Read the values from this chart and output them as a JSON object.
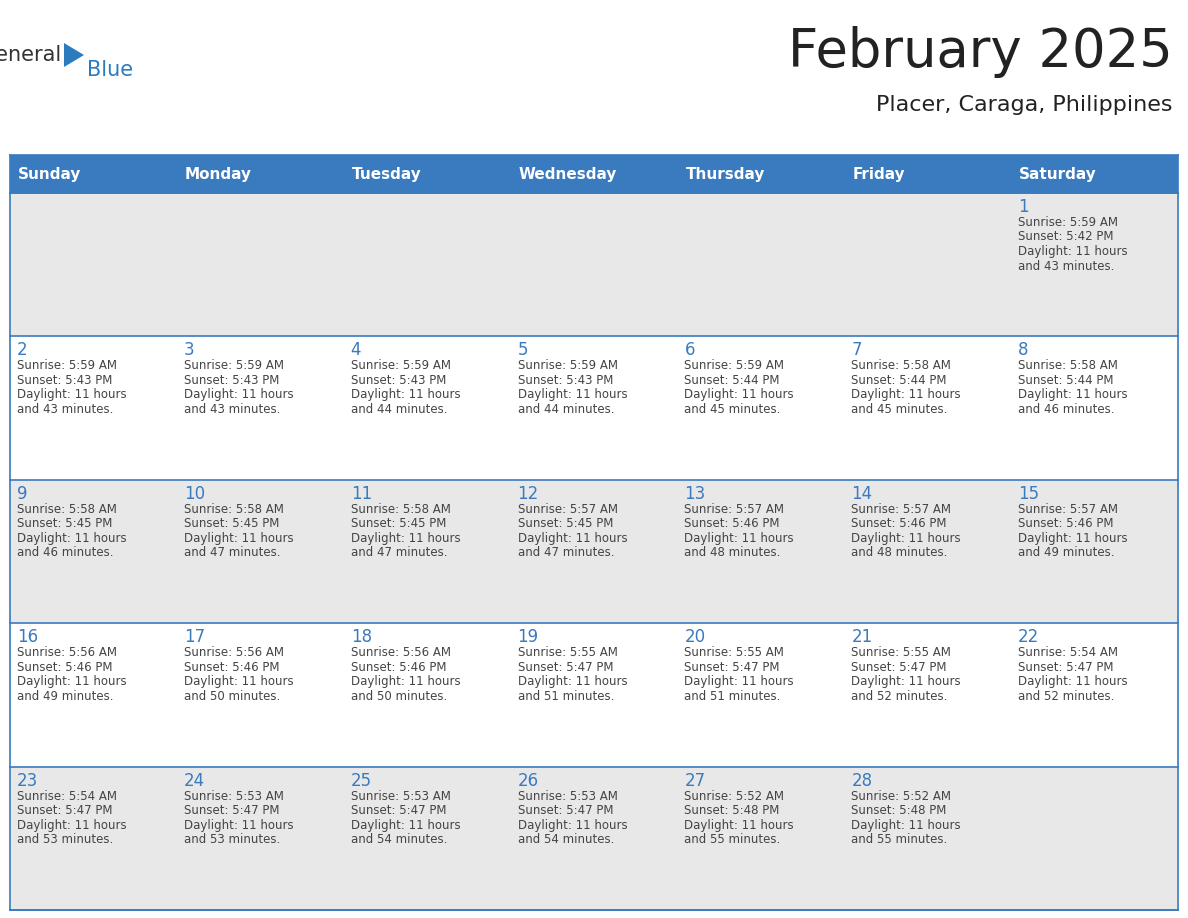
{
  "title": "February 2025",
  "subtitle": "Placer, Caraga, Philippines",
  "header_bg": "#3a7abf",
  "header_text": "#ffffff",
  "cell_bg_light": "#e8e8e8",
  "cell_bg_white": "#ffffff",
  "border_color": "#3a7abf",
  "day_number_color": "#3a7abf",
  "text_color": "#444444",
  "title_color": "#222222",
  "days_of_week": [
    "Sunday",
    "Monday",
    "Tuesday",
    "Wednesday",
    "Thursday",
    "Friday",
    "Saturday"
  ],
  "logo_general_color": "#333333",
  "logo_blue_color": "#2b7bbf",
  "calendar": [
    [
      {
        "day": "",
        "sunrise": "",
        "sunset": "",
        "daylight_h": "",
        "daylight_m": ""
      },
      {
        "day": "",
        "sunrise": "",
        "sunset": "",
        "daylight_h": "",
        "daylight_m": ""
      },
      {
        "day": "",
        "sunrise": "",
        "sunset": "",
        "daylight_h": "",
        "daylight_m": ""
      },
      {
        "day": "",
        "sunrise": "",
        "sunset": "",
        "daylight_h": "",
        "daylight_m": ""
      },
      {
        "day": "",
        "sunrise": "",
        "sunset": "",
        "daylight_h": "",
        "daylight_m": ""
      },
      {
        "day": "",
        "sunrise": "",
        "sunset": "",
        "daylight_h": "",
        "daylight_m": ""
      },
      {
        "day": "1",
        "sunrise": "5:59 AM",
        "sunset": "5:42 PM",
        "daylight_h": "11 hours",
        "daylight_m": "and 43 minutes."
      }
    ],
    [
      {
        "day": "2",
        "sunrise": "5:59 AM",
        "sunset": "5:43 PM",
        "daylight_h": "11 hours",
        "daylight_m": "and 43 minutes."
      },
      {
        "day": "3",
        "sunrise": "5:59 AM",
        "sunset": "5:43 PM",
        "daylight_h": "11 hours",
        "daylight_m": "and 43 minutes."
      },
      {
        "day": "4",
        "sunrise": "5:59 AM",
        "sunset": "5:43 PM",
        "daylight_h": "11 hours",
        "daylight_m": "and 44 minutes."
      },
      {
        "day": "5",
        "sunrise": "5:59 AM",
        "sunset": "5:43 PM",
        "daylight_h": "11 hours",
        "daylight_m": "and 44 minutes."
      },
      {
        "day": "6",
        "sunrise": "5:59 AM",
        "sunset": "5:44 PM",
        "daylight_h": "11 hours",
        "daylight_m": "and 45 minutes."
      },
      {
        "day": "7",
        "sunrise": "5:58 AM",
        "sunset": "5:44 PM",
        "daylight_h": "11 hours",
        "daylight_m": "and 45 minutes."
      },
      {
        "day": "8",
        "sunrise": "5:58 AM",
        "sunset": "5:44 PM",
        "daylight_h": "11 hours",
        "daylight_m": "and 46 minutes."
      }
    ],
    [
      {
        "day": "9",
        "sunrise": "5:58 AM",
        "sunset": "5:45 PM",
        "daylight_h": "11 hours",
        "daylight_m": "and 46 minutes."
      },
      {
        "day": "10",
        "sunrise": "5:58 AM",
        "sunset": "5:45 PM",
        "daylight_h": "11 hours",
        "daylight_m": "and 47 minutes."
      },
      {
        "day": "11",
        "sunrise": "5:58 AM",
        "sunset": "5:45 PM",
        "daylight_h": "11 hours",
        "daylight_m": "and 47 minutes."
      },
      {
        "day": "12",
        "sunrise": "5:57 AM",
        "sunset": "5:45 PM",
        "daylight_h": "11 hours",
        "daylight_m": "and 47 minutes."
      },
      {
        "day": "13",
        "sunrise": "5:57 AM",
        "sunset": "5:46 PM",
        "daylight_h": "11 hours",
        "daylight_m": "and 48 minutes."
      },
      {
        "day": "14",
        "sunrise": "5:57 AM",
        "sunset": "5:46 PM",
        "daylight_h": "11 hours",
        "daylight_m": "and 48 minutes."
      },
      {
        "day": "15",
        "sunrise": "5:57 AM",
        "sunset": "5:46 PM",
        "daylight_h": "11 hours",
        "daylight_m": "and 49 minutes."
      }
    ],
    [
      {
        "day": "16",
        "sunrise": "5:56 AM",
        "sunset": "5:46 PM",
        "daylight_h": "11 hours",
        "daylight_m": "and 49 minutes."
      },
      {
        "day": "17",
        "sunrise": "5:56 AM",
        "sunset": "5:46 PM",
        "daylight_h": "11 hours",
        "daylight_m": "and 50 minutes."
      },
      {
        "day": "18",
        "sunrise": "5:56 AM",
        "sunset": "5:46 PM",
        "daylight_h": "11 hours",
        "daylight_m": "and 50 minutes."
      },
      {
        "day": "19",
        "sunrise": "5:55 AM",
        "sunset": "5:47 PM",
        "daylight_h": "11 hours",
        "daylight_m": "and 51 minutes."
      },
      {
        "day": "20",
        "sunrise": "5:55 AM",
        "sunset": "5:47 PM",
        "daylight_h": "11 hours",
        "daylight_m": "and 51 minutes."
      },
      {
        "day": "21",
        "sunrise": "5:55 AM",
        "sunset": "5:47 PM",
        "daylight_h": "11 hours",
        "daylight_m": "and 52 minutes."
      },
      {
        "day": "22",
        "sunrise": "5:54 AM",
        "sunset": "5:47 PM",
        "daylight_h": "11 hours",
        "daylight_m": "and 52 minutes."
      }
    ],
    [
      {
        "day": "23",
        "sunrise": "5:54 AM",
        "sunset": "5:47 PM",
        "daylight_h": "11 hours",
        "daylight_m": "and 53 minutes."
      },
      {
        "day": "24",
        "sunrise": "5:53 AM",
        "sunset": "5:47 PM",
        "daylight_h": "11 hours",
        "daylight_m": "and 53 minutes."
      },
      {
        "day": "25",
        "sunrise": "5:53 AM",
        "sunset": "5:47 PM",
        "daylight_h": "11 hours",
        "daylight_m": "and 54 minutes."
      },
      {
        "day": "26",
        "sunrise": "5:53 AM",
        "sunset": "5:47 PM",
        "daylight_h": "11 hours",
        "daylight_m": "and 54 minutes."
      },
      {
        "day": "27",
        "sunrise": "5:52 AM",
        "sunset": "5:48 PM",
        "daylight_h": "11 hours",
        "daylight_m": "and 55 minutes."
      },
      {
        "day": "28",
        "sunrise": "5:52 AM",
        "sunset": "5:48 PM",
        "daylight_h": "11 hours",
        "daylight_m": "and 55 minutes."
      },
      {
        "day": "",
        "sunrise": "",
        "sunset": "",
        "daylight_h": "",
        "daylight_m": ""
      }
    ]
  ]
}
